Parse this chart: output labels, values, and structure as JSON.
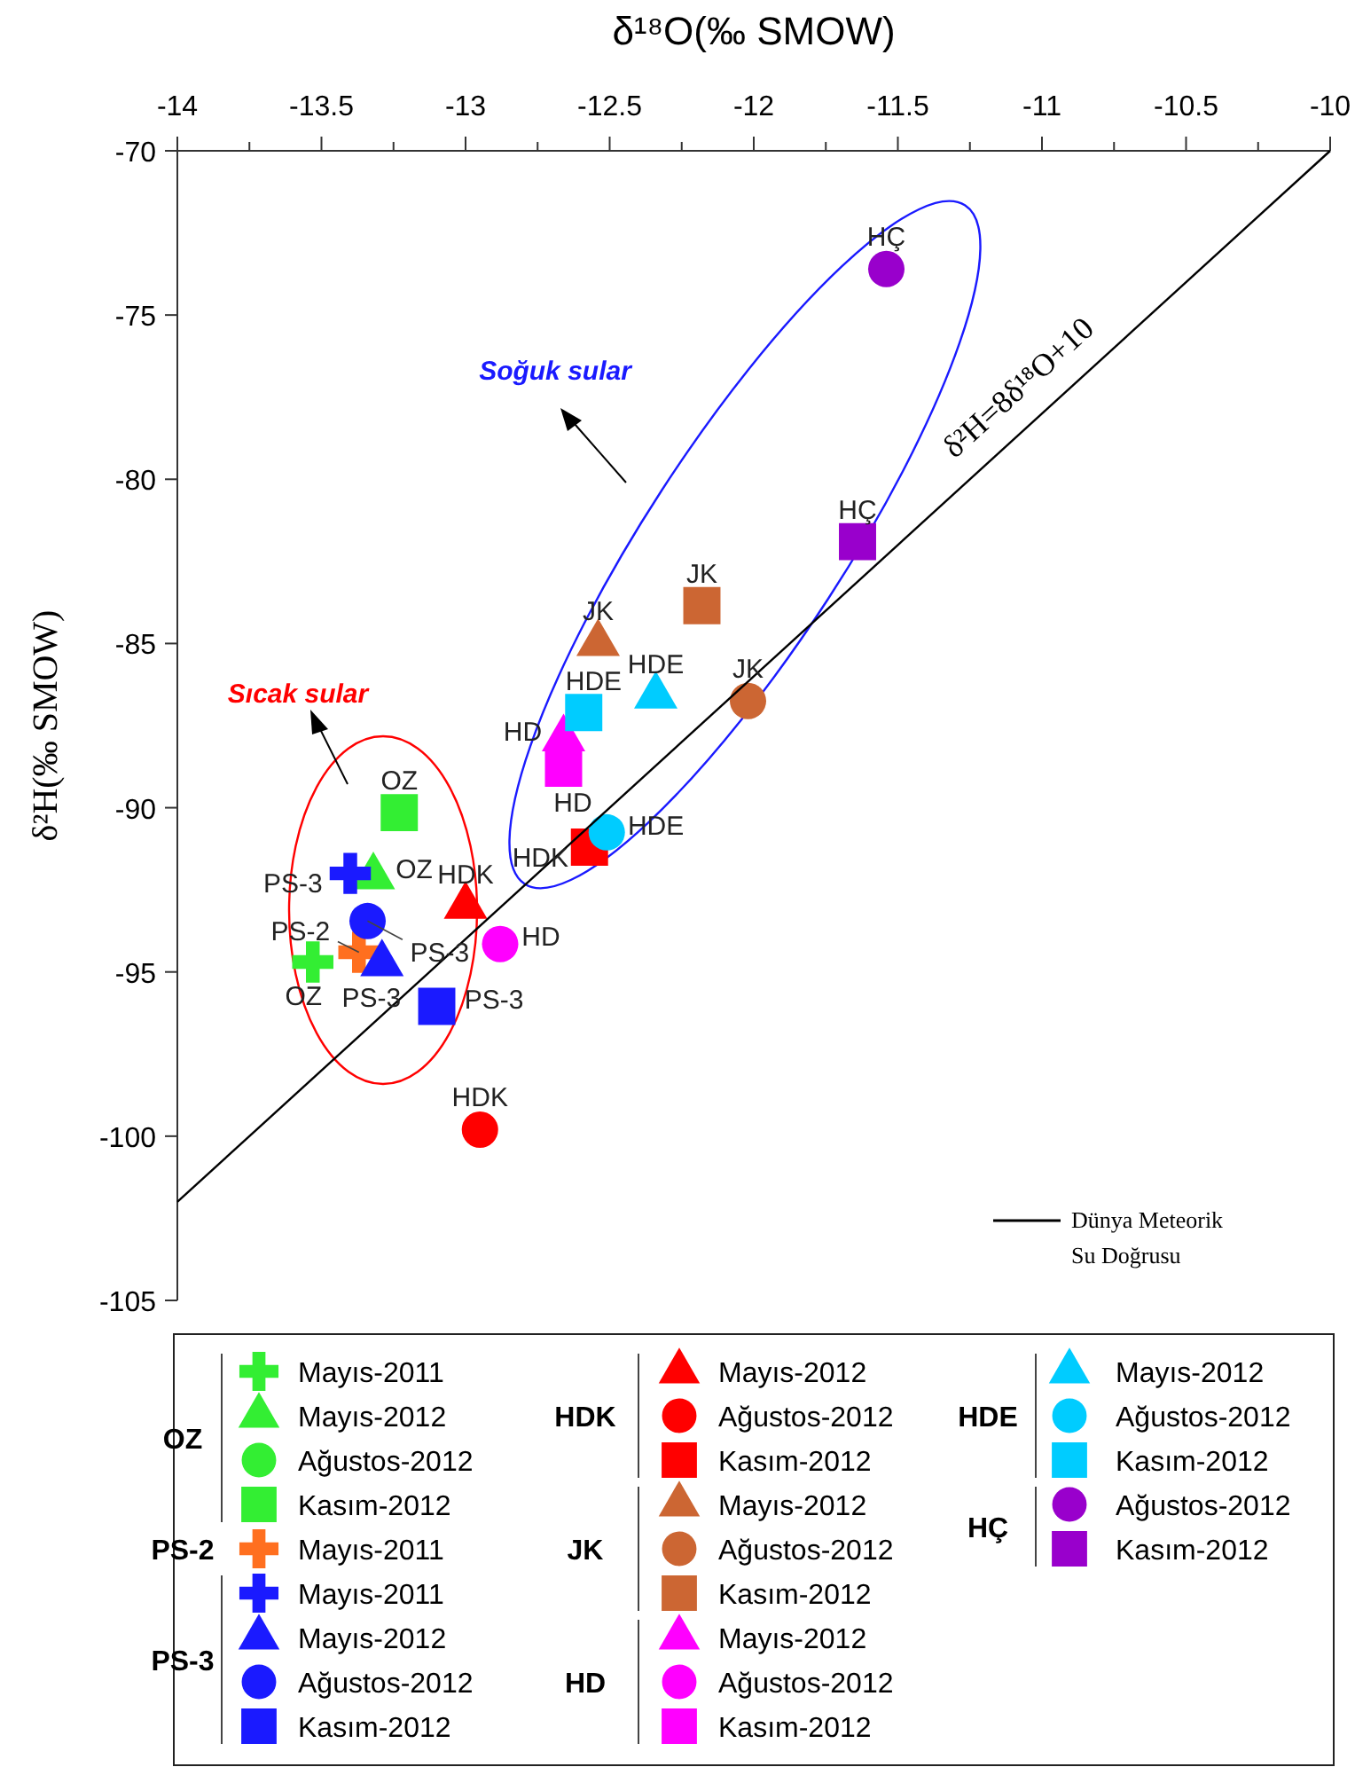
{
  "chart_data": {
    "type": "scatter",
    "xlabel": "δ¹⁸O(‰ SMOW)",
    "ylabel": "δ²H(‰ SMOW)",
    "xlim": [
      -14,
      -10
    ],
    "ylim": [
      -105,
      -70
    ],
    "xticks": [
      -14,
      {
        "value": -13.75,
        "label": null
      },
      -13.5,
      {
        "value": -13.25,
        "label": null
      },
      -13,
      {
        "value": -12.75,
        "label": null
      },
      -12.5,
      {
        "value": -12.25,
        "label": null
      },
      -12,
      {
        "value": -11.75,
        "label": null
      },
      -11.5,
      {
        "value": -11.25,
        "label": null
      },
      -11,
      {
        "value": -10.75,
        "label": null
      },
      -10.5,
      {
        "value": -10.25,
        "label": null
      },
      -10
    ],
    "yticks": [
      -70,
      -75,
      -80,
      -85,
      -90,
      -95,
      -100,
      -105
    ],
    "grid": false,
    "legend": "bottom",
    "annotations": [
      "Sıcak sular",
      "Soğuk sular",
      {
        "text": "δ²H=8δ¹⁸O+10",
        "x": -11.0,
        "y": -78.0
      },
      "OZ",
      "PS-2",
      "PS-3",
      "HDK",
      "JK",
      "HD",
      "HDE",
      "HÇ"
    ],
    "series": [
      {
        "name": "Mayıs-2011",
        "marker": "cross",
        "color": "#33ee33",
        "x": [
          -13.53
        ],
        "values": [
          -94.7
        ],
        "value_labels": [
          "OZ"
        ]
      },
      {
        "name": "Mayıs-2012",
        "marker": "triangle",
        "color": "#33ee33",
        "x": [
          -13.32
        ],
        "values": [
          -92.1
        ],
        "value_labels": [
          "OZ"
        ]
      },
      {
        "name": "Ağustos-2012",
        "marker": "circle",
        "color": "#33ee33",
        "x": [
          null
        ],
        "values": [
          null
        ],
        "value_labels": [
          null
        ]
      },
      {
        "name": "Kasım-2012",
        "marker": "square",
        "color": "#33ee33",
        "x": [
          -13.23
        ],
        "values": [
          -90.15
        ],
        "value_labels": [
          "OZ"
        ]
      },
      {
        "name": "Mayıs-2011",
        "marker": "cross",
        "color": "#ff6f1f",
        "x": [
          -13.37
        ],
        "values": [
          -94.4
        ],
        "value_labels": [
          "PS-2"
        ]
      },
      {
        "name": "Mayıs-2011",
        "marker": "cross",
        "color": "#1a1aff",
        "x": [
          -13.4
        ],
        "values": [
          -92.0
        ],
        "value_labels": [
          "PS-3"
        ]
      },
      {
        "name": "Mayıs-2012",
        "marker": "triangle",
        "color": "#1a1aff",
        "x": [
          -13.29
        ],
        "values": [
          -94.75
        ],
        "value_labels": [
          "PS-3"
        ]
      },
      {
        "name": "Ağustos-2012",
        "marker": "circle",
        "color": "#1a1aff",
        "x": [
          -13.34
        ],
        "values": [
          -93.45
        ],
        "value_labels": [
          "PS-3"
        ]
      },
      {
        "name": "Kasım-2012",
        "marker": "square",
        "color": "#1a1aff",
        "x": [
          -13.1
        ],
        "values": [
          -96.05
        ],
        "value_labels": [
          "PS-3"
        ]
      },
      {
        "name": "Mayıs-2012",
        "marker": "triangle",
        "color": "#ff0000",
        "x": [
          -13.0
        ],
        "values": [
          -93.0
        ],
        "value_labels": [
          "HDK"
        ]
      },
      {
        "name": "Ağustos-2012",
        "marker": "circle",
        "color": "#ff0000",
        "x": [
          -12.95
        ],
        "values": [
          -99.8
        ],
        "value_labels": [
          "HDK"
        ]
      },
      {
        "name": "Kasım-2012",
        "marker": "square",
        "color": "#ff0000",
        "x": [
          -12.57
        ],
        "values": [
          -91.2
        ],
        "value_labels": [
          "HDK"
        ]
      },
      {
        "name": "Mayıs-2012",
        "marker": "triangle",
        "color": "#cc6633",
        "x": [
          -12.54
        ],
        "values": [
          -85.0
        ],
        "value_labels": [
          "JK"
        ]
      },
      {
        "name": "Ağustos-2012",
        "marker": "circle",
        "color": "#cc6633",
        "x": [
          -12.02
        ],
        "values": [
          -86.75
        ],
        "value_labels": [
          "JK"
        ]
      },
      {
        "name": "Kasım-2012",
        "marker": "square",
        "color": "#cc6633",
        "x": [
          -12.18
        ],
        "values": [
          -83.85
        ],
        "value_labels": [
          "JK"
        ]
      },
      {
        "name": "Mayıs-2012",
        "marker": "triangle",
        "color": "#ff00ff",
        "x": [
          -12.66
        ],
        "values": [
          -87.9
        ],
        "value_labels": [
          "HD"
        ]
      },
      {
        "name": "Ağustos-2012",
        "marker": "circle",
        "color": "#ff00ff",
        "x": [
          -12.88
        ],
        "values": [
          -94.15
        ],
        "value_labels": [
          "HD"
        ]
      },
      {
        "name": "Kasım-2012",
        "marker": "square",
        "color": "#ff00ff",
        "x": [
          -12.66
        ],
        "values": [
          -88.8
        ],
        "value_labels": [
          "HD"
        ]
      },
      {
        "name": "Mayıs-2012",
        "marker": "triangle",
        "color": "#00ccff",
        "x": [
          -12.34
        ],
        "values": [
          -86.6
        ],
        "value_labels": [
          "HDE"
        ]
      },
      {
        "name": "Ağustos-2012",
        "marker": "circle",
        "color": "#00ccff",
        "x": [
          -12.51
        ],
        "values": [
          -90.75
        ],
        "value_labels": [
          "HDE"
        ]
      },
      {
        "name": "Kasım-2012",
        "marker": "square",
        "color": "#00ccff",
        "x": [
          -12.59
        ],
        "values": [
          -87.1
        ],
        "value_labels": [
          "HDE"
        ]
      },
      {
        "name": "Ağustos-2012",
        "marker": "circle",
        "color": "#9900cc",
        "x": [
          -11.54
        ],
        "values": [
          -73.6
        ],
        "value_labels": [
          "HÇ"
        ]
      },
      {
        "name": "Kasım-2012",
        "marker": "square",
        "color": "#9900cc",
        "x": [
          -11.64
        ],
        "values": [
          -81.9
        ],
        "value_labels": [
          "HÇ"
        ]
      },
      {
        "type": "line",
        "name": "Dünya Meteorik Su Doğrusu",
        "color": "#000000",
        "marker": "none",
        "line_style": "solid",
        "x": [
          -14,
          -10
        ],
        "values": [
          -102,
          -70
        ]
      }
    ]
  }
}
